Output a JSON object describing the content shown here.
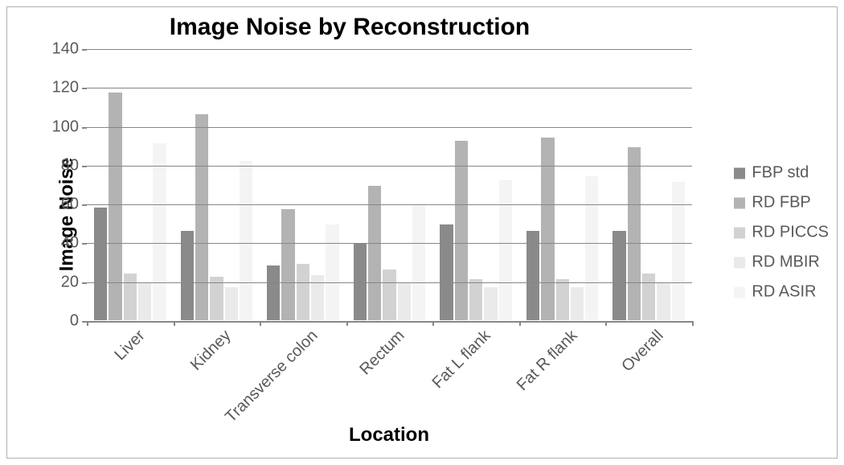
{
  "chart": {
    "type": "bar",
    "title": "Image Noise by Reconstruction",
    "title_fontsize": 30,
    "title_fontweight": "bold",
    "title_color": "#000000",
    "background_color": "#ffffff",
    "border_color": "#b7aeae",
    "y_axis": {
      "label": "Image Noise",
      "label_fontsize": 24,
      "label_fontweight": "bold",
      "min": 0,
      "max": 140,
      "tick_step": 20,
      "tick_fontsize": 20,
      "tick_color": "#595959",
      "grid_color": "#878787",
      "axis_color": "#878787"
    },
    "x_axis": {
      "label": "Location",
      "label_fontsize": 24,
      "label_fontweight": "bold",
      "tick_fontsize": 20,
      "tick_color": "#595959",
      "tick_rotation_deg": -45
    },
    "categories": [
      "Liver",
      "Kidney",
      "Transverse colon",
      "Rectum",
      "Fat L flank",
      "Fat R flank",
      "Overall"
    ],
    "series": [
      {
        "name": "FBP std",
        "color": "#8a8a8a",
        "values": [
          59,
          47,
          29,
          40,
          50,
          47,
          47
        ]
      },
      {
        "name": "RD FBP",
        "color": "#b3b3b3",
        "values": [
          118,
          107,
          58,
          70,
          93,
          95,
          90
        ]
      },
      {
        "name": "RD PICCS",
        "color": "#d2d2d2",
        "values": [
          25,
          23,
          30,
          27,
          22,
          22,
          25
        ]
      },
      {
        "name": "RD MBIR",
        "color": "#eaeaea",
        "values": [
          20,
          18,
          24,
          20,
          18,
          18,
          20
        ]
      },
      {
        "name": "RD ASIR",
        "color": "#f4f4f4",
        "values": [
          92,
          83,
          50,
          60,
          73,
          75,
          72
        ]
      }
    ],
    "legend": {
      "position": "right",
      "fontsize": 20,
      "swatch_size": 14,
      "text_color": "#595959"
    },
    "bar_group_gap_ratio": 0.3
  }
}
